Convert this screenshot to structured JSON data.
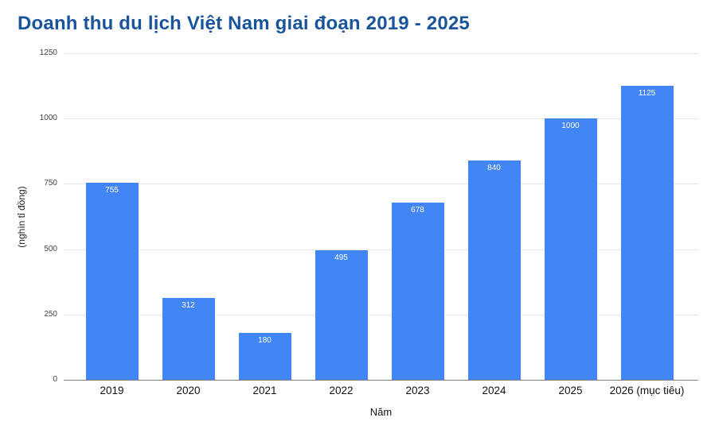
{
  "title": {
    "text": "Doanh thu du lịch Việt Nam giai đoạn 2019 - 2025",
    "color": "#1a549c"
  },
  "chart_data": {
    "type": "bar",
    "title": "Doanh thu du lịch Việt Nam giai đoạn 2019 - 2025",
    "categories": [
      "2019",
      "2020",
      "2021",
      "2022",
      "2023",
      "2024",
      "2025",
      "2026 (mục tiêu)"
    ],
    "values": [
      755,
      312,
      180,
      495,
      678,
      840,
      1000,
      1125
    ],
    "value_labels": [
      "755",
      "312",
      "180",
      "495",
      "678",
      "840",
      "1000",
      "1125"
    ],
    "xlabel": "Năm",
    "ylabel": "(nghìn tỉ đồng)",
    "ylim": [
      0,
      1250
    ],
    "yticks": [
      0,
      250,
      500,
      750,
      1000,
      1250
    ],
    "grid": true,
    "legend_position": "none",
    "bar_color": "#4285F4",
    "value_label_color": "#ffffff",
    "gridline_color": "#e6e6e6",
    "axis_line_color": "#808080"
  }
}
